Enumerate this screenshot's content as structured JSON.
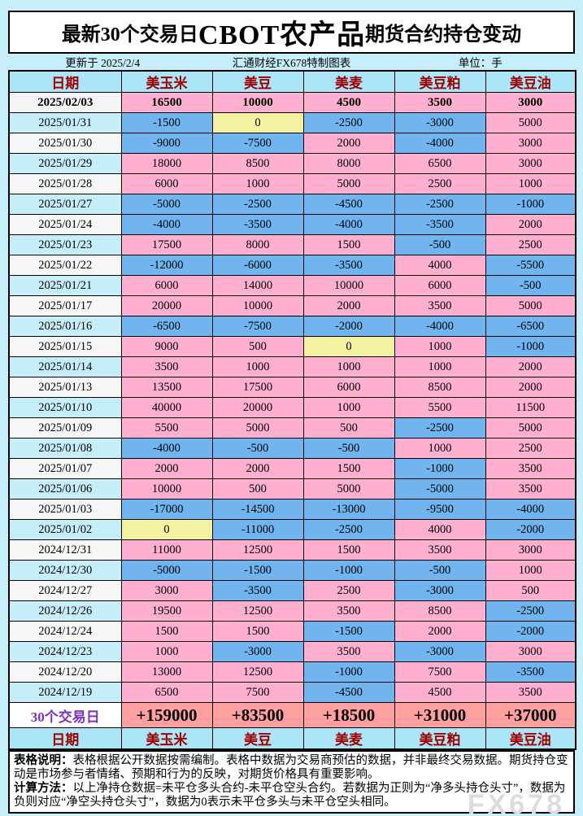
{
  "title": {
    "prefix": "最新30个交易日",
    "highlight": "CBOT农产品",
    "suffix": "期货合约持仓变动"
  },
  "meta": {
    "updated": "更新于 2025/2/4",
    "source": "汇通财经FX678特制图表",
    "unit": "单位：手"
  },
  "columns": [
    "日期",
    "美玉米",
    "美豆",
    "美麦",
    "美豆粕",
    "美豆油"
  ],
  "chart_data": {
    "type": "table",
    "title": "最新30个交易日CBOT农产品期货合约持仓变动",
    "unit": "手",
    "categories": [
      "2025/02/03",
      "2025/01/31",
      "2025/01/30",
      "2025/01/29",
      "2025/01/28",
      "2025/01/27",
      "2025/01/24",
      "2025/01/23",
      "2025/01/22",
      "2025/01/21",
      "2025/01/17",
      "2025/01/16",
      "2025/01/15",
      "2025/01/14",
      "2025/01/13",
      "2025/01/10",
      "2025/01/09",
      "2025/01/08",
      "2025/01/07",
      "2025/01/06",
      "2025/01/03",
      "2025/01/02",
      "2024/12/31",
      "2024/12/30",
      "2024/12/27",
      "2024/12/26",
      "2024/12/24",
      "2024/12/23",
      "2024/12/20",
      "2024/12/19"
    ],
    "series": [
      {
        "name": "美玉米",
        "values": [
          16500,
          -1500,
          -9000,
          18000,
          6000,
          -5000,
          -4000,
          17500,
          -12000,
          6000,
          20000,
          -6500,
          9000,
          3500,
          13500,
          40000,
          5500,
          -4000,
          2000,
          10000,
          -17000,
          0,
          11000,
          -5000,
          3000,
          19500,
          1500,
          1000,
          13000,
          6500
        ]
      },
      {
        "name": "美豆",
        "values": [
          10000,
          0,
          -7500,
          8500,
          1000,
          -2500,
          -3500,
          8000,
          -6000,
          14000,
          10000,
          -7500,
          500,
          1000,
          17500,
          20000,
          5000,
          -500,
          2000,
          500,
          -14500,
          -11000,
          12500,
          -1500,
          -3500,
          12500,
          1500,
          -3000,
          12500,
          7500
        ]
      },
      {
        "name": "美麦",
        "values": [
          4500,
          -2500,
          2000,
          8000,
          5000,
          -4500,
          -4000,
          1500,
          -3500,
          10000,
          2000,
          -2000,
          0,
          1000,
          6000,
          1000,
          500,
          -500,
          1500,
          5000,
          -13000,
          -2500,
          1500,
          -1000,
          2500,
          3500,
          -1500,
          3500,
          -1000,
          -4500
        ]
      },
      {
        "name": "美豆粕",
        "values": [
          3500,
          -3000,
          -4000,
          6500,
          2500,
          -2500,
          -3500,
          -500,
          4000,
          6000,
          3500,
          -4000,
          1000,
          1000,
          8500,
          5500,
          -2500,
          1000,
          -1000,
          -5000,
          -9500,
          4000,
          3500,
          -500,
          -3000,
          8500,
          2000,
          -3000,
          7500,
          4500
        ]
      },
      {
        "name": "美豆油",
        "values": [
          3000,
          5000,
          3000,
          3000,
          1000,
          -1000,
          2000,
          2500,
          -5500,
          -500,
          5000,
          -6500,
          -1000,
          2000,
          2000,
          11500,
          5000,
          2500,
          3500,
          3500,
          -4000,
          -2000,
          3000,
          1000,
          500,
          -2500,
          -2000,
          3000,
          -3500,
          3500
        ]
      }
    ]
  },
  "summary": {
    "label": "30个交易日",
    "values_display": [
      "+159000",
      "+83500",
      "+18500",
      "+31000",
      "+37000"
    ]
  },
  "notes": [
    {
      "label": "表格说明：",
      "text": "表格根据公开数据按需编制。表格中数据为交易商预估的数据，并非最终交易数据。期货持仓变动是市场参与者情绪、预期和行为的反映，对期货价格具有重要影响。"
    },
    {
      "label": "计算方法：",
      "text": "以上净持仓数据=未平仓多头合约-未平仓空头合约。若数据为正则为“净多头持仓头寸”，数据为负则对应“净空头持仓头寸”，数据为0表示未平仓多头与未平仓空头相同。"
    }
  ],
  "watermark": "FX678",
  "colors": {
    "page_bg": "#C6EFFB",
    "header_bg": "#ABE6F8",
    "header_text": "#A00000",
    "positive_cell": "#FFB0D0",
    "negative_cell": "#70B4F0",
    "zero_cell": "#F2F2A0",
    "summary_value_bg": "#FF9F9F",
    "summary_label_text": "#7D2FBF",
    "date_alt_cyan": "#C6EEFA",
    "date_alt_white": "#F6F6F6"
  }
}
